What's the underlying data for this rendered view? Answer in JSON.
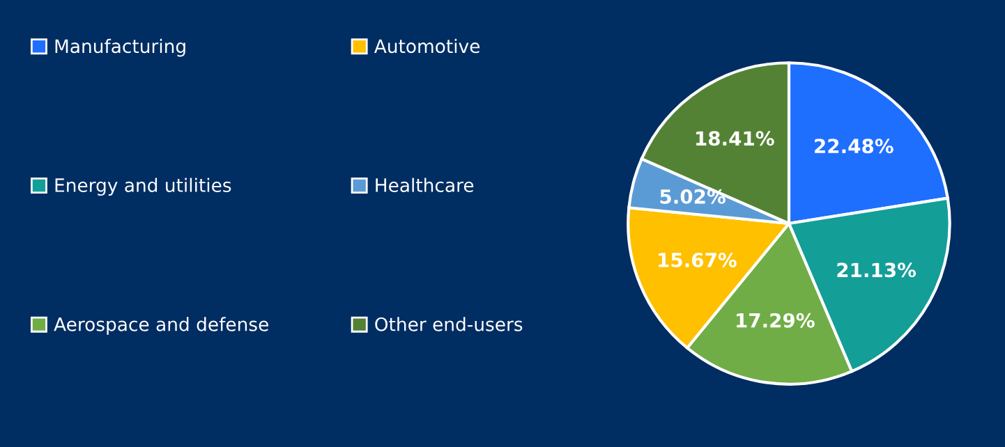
{
  "chart_data": {
    "type": "pie",
    "categories": [
      "Manufacturing",
      "Energy and utilities",
      "Aerospace and defense",
      "Automotive",
      "Healthcare",
      "Other end-users"
    ],
    "values": [
      22.48,
      21.13,
      17.29,
      15.67,
      5.02,
      18.41
    ],
    "value_labels": [
      "22.48%",
      "21.13%",
      "17.29%",
      "15.67%",
      "5.02%",
      "18.41%"
    ],
    "colors": [
      "#1f6fff",
      "#139e98",
      "#70ad47",
      "#ffc000",
      "#5b9bd5",
      "#548235"
    ],
    "legend": "left"
  }
}
